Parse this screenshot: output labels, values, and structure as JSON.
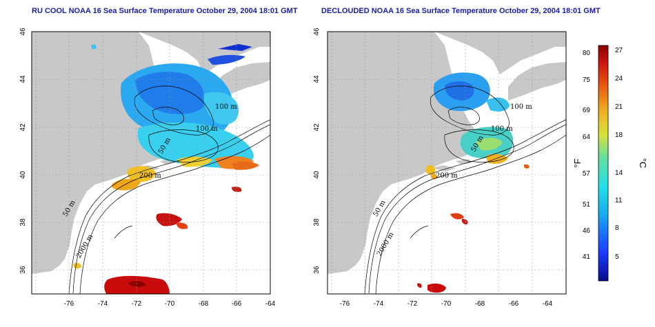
{
  "panels": [
    {
      "title": "RU COOL NOAA 16 Sea Surface Temperature October 29, 2004 18:01 GMT",
      "contour_labels": [
        "100 m",
        "100 m",
        "50 m",
        "200 m",
        "50 m",
        "2000 m"
      ]
    },
    {
      "title": "DECLOUDED NOAA 16 Sea Surface Temperature October 29, 2004 18:01 GMT",
      "contour_labels": [
        "100 m",
        "100 m",
        "50 m",
        "200 m",
        "50 m",
        "2000 m"
      ]
    }
  ],
  "axes": {
    "lon_ticks": [
      "-76",
      "-74",
      "-72",
      "-70",
      "-68",
      "-66",
      "-64"
    ],
    "lat_ticks": [
      "46",
      "44",
      "42",
      "40",
      "38",
      "36"
    ]
  },
  "colorbar": {
    "fahrenheit_ticks": [
      "80",
      "75",
      "69",
      "64",
      "57",
      "51",
      "46",
      "41"
    ],
    "celsius_ticks": [
      "27",
      "24",
      "21",
      "18",
      "14",
      "11",
      "8",
      "5"
    ],
    "f_unit": "°F",
    "c_unit": "°C"
  },
  "colors": {
    "land": "#c8c8c8",
    "ocean": "#ffffff",
    "title": "#1a1aa6"
  }
}
